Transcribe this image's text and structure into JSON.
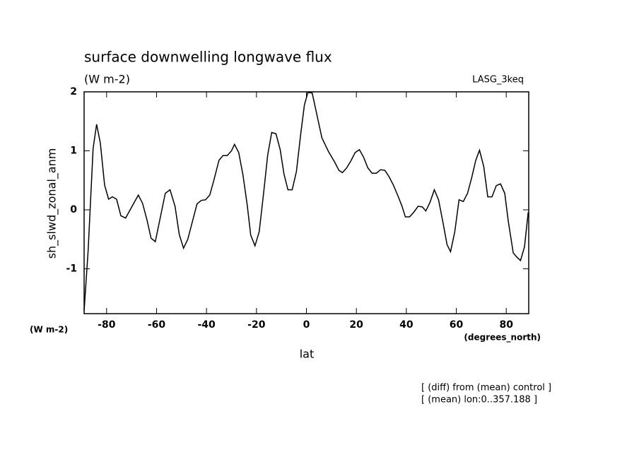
{
  "chart_data": {
    "type": "line",
    "title": "surface downwelling longwave flux",
    "units": "(W m-2)",
    "experiment": "LASG_3keq",
    "ylabel": "sh_slwd_zonal_anm",
    "yunits": "(W m-2)",
    "xunits": "(degrees_north)",
    "xlabel": "lat",
    "notes": [
      "[ (diff) from (mean) control ]",
      "[ (mean) lon:0..357.188 ]"
    ],
    "x": [
      -89,
      -87.4,
      -85.4,
      -84,
      -82.5,
      -80.8,
      -79.2,
      -77.7,
      -76,
      -74.3,
      -72.4,
      -67.3,
      -65.6,
      -63.9,
      -62.2,
      -60.5,
      -56.5,
      -54.6,
      -52.6,
      -50.9,
      -49.2,
      -47.5,
      -43.8,
      -42.1,
      -40.4,
      -38.7,
      -37,
      -35,
      -33.4,
      -31.7,
      -30,
      -28.8,
      -27.1,
      -25.4,
      -23.7,
      -22.3,
      -20.6,
      -18.9,
      -17.2,
      -15.5,
      -13.9,
      -12.2,
      -10.5,
      -9,
      -7.4,
      -5.7,
      -4,
      -2.3,
      -0.8,
      0.6,
      2.3,
      4,
      6.2,
      8.8,
      11.3,
      13,
      14.4,
      16.1,
      17.8,
      19.5,
      21.2,
      22.9,
      24.6,
      26.3,
      28,
      29.7,
      31.4,
      33.1,
      34.8,
      36.5,
      38.2,
      39.6,
      41.3,
      43,
      44.7,
      46.4,
      47.8,
      49.5,
      51.2,
      52.9,
      54.6,
      56.3,
      57.7,
      59.4,
      61.1,
      62.8,
      64.5,
      66.2,
      67.8,
      69.3,
      71,
      72.6,
      74.3,
      76,
      77.7,
      79.4,
      80.8,
      82.8,
      84.2,
      85.7,
      87.3,
      88.8
    ],
    "series": [
      {
        "color": "#000000",
        "values": [
          -1.71,
          -0.7,
          1.04,
          1.45,
          1.13,
          0.42,
          0.18,
          0.22,
          0.18,
          -0.1,
          -0.14,
          0.25,
          0.11,
          -0.16,
          -0.48,
          -0.54,
          0.28,
          0.34,
          0.06,
          -0.42,
          -0.65,
          -0.5,
          0.1,
          0.16,
          0.17,
          0.25,
          0.51,
          0.84,
          0.92,
          0.92,
          1.0,
          1.11,
          0.97,
          0.59,
          0.08,
          -0.43,
          -0.61,
          -0.37,
          0.26,
          0.93,
          1.31,
          1.29,
          1.02,
          0.61,
          0.34,
          0.34,
          0.65,
          1.28,
          1.78,
          1.99,
          1.98,
          1.65,
          1.22,
          0.99,
          0.81,
          0.67,
          0.63,
          0.71,
          0.83,
          0.97,
          1.02,
          0.89,
          0.71,
          0.62,
          0.62,
          0.68,
          0.67,
          0.56,
          0.42,
          0.25,
          0.07,
          -0.12,
          -0.12,
          -0.04,
          0.06,
          0.05,
          -0.02,
          0.13,
          0.34,
          0.17,
          -0.2,
          -0.59,
          -0.71,
          -0.37,
          0.17,
          0.14,
          0.28,
          0.55,
          0.84,
          1.01,
          0.73,
          0.22,
          0.22,
          0.41,
          0.44,
          0.28,
          -0.19,
          -0.73,
          -0.8,
          -0.86,
          -0.63,
          -0.04
        ]
      }
    ],
    "xlim": [
      -89,
      89
    ],
    "xticks": [
      -80,
      -60,
      -40,
      -20,
      0,
      20,
      40,
      60,
      80
    ],
    "ylim": [
      -1.76,
      2
    ],
    "yticks": [
      -1,
      0,
      1,
      2
    ]
  }
}
